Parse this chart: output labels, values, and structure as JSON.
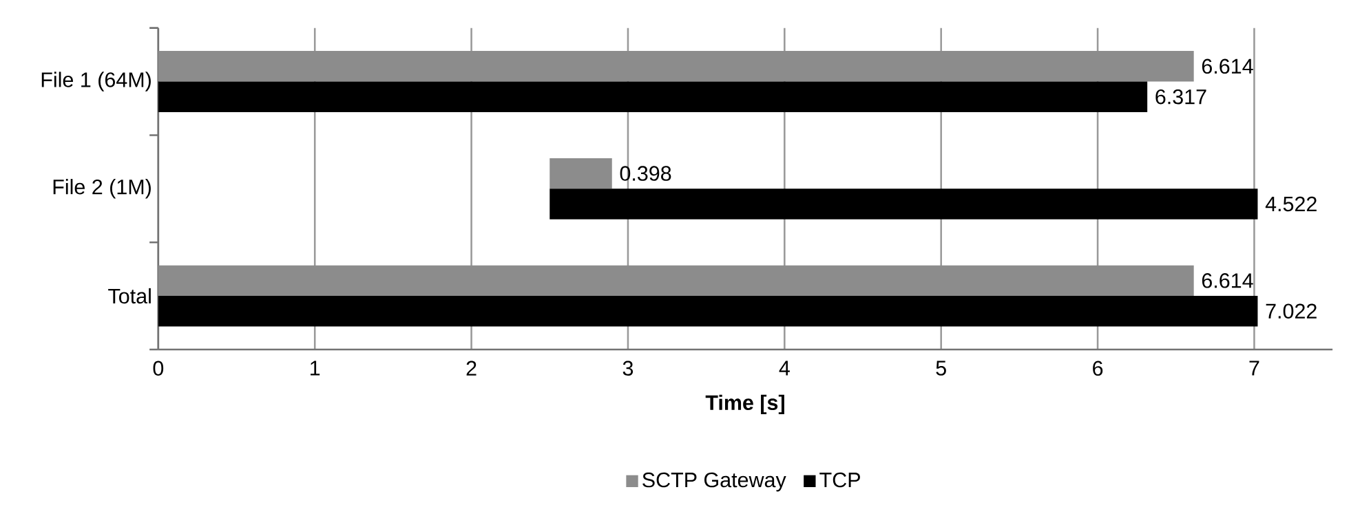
{
  "chart_data": {
    "type": "bar",
    "orientation": "horizontal",
    "xlabel": "Time [s]",
    "categories": [
      "File 1 (64M)",
      "File 2 (1M)",
      "Total"
    ],
    "series": [
      {
        "name": "SCTP Gateway",
        "color": "#8c8c8c",
        "values": [
          6.614,
          0.398,
          6.614
        ],
        "base": [
          0,
          2.5,
          0
        ]
      },
      {
        "name": "TCP",
        "color": "#000000",
        "values": [
          6.317,
          4.522,
          7.022
        ],
        "base": [
          0,
          2.5,
          0
        ]
      }
    ],
    "xlim": [
      0,
      7.5
    ],
    "xticks": [
      0,
      1,
      2,
      3,
      4,
      5,
      6,
      7
    ],
    "grid": "x",
    "legend": "bottom",
    "data_labels": true
  }
}
